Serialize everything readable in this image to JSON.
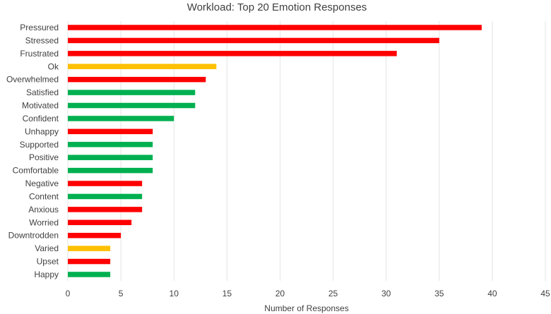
{
  "chart_data": {
    "type": "bar",
    "orientation": "horizontal",
    "title": "Workload: Top 20 Emotion Responses",
    "xlabel": "Number of Responses",
    "ylabel": "",
    "xlim": [
      0,
      45
    ],
    "x_ticks": [
      0,
      5,
      10,
      15,
      20,
      25,
      30,
      35,
      40,
      45
    ],
    "grid": "vertical",
    "legend": "none",
    "colors": {
      "negative": "#ff0000",
      "neutral": "#ffc000",
      "positive": "#00b050"
    },
    "bars": [
      {
        "label": "Pressured",
        "value": 39,
        "sentiment": "negative"
      },
      {
        "label": "Stressed",
        "value": 35,
        "sentiment": "negative"
      },
      {
        "label": "Frustrated",
        "value": 31,
        "sentiment": "negative"
      },
      {
        "label": "Ok",
        "value": 14,
        "sentiment": "neutral"
      },
      {
        "label": "Overwhelmed",
        "value": 13,
        "sentiment": "negative"
      },
      {
        "label": "Satisfied",
        "value": 12,
        "sentiment": "positive"
      },
      {
        "label": "Motivated",
        "value": 12,
        "sentiment": "positive"
      },
      {
        "label": "Confident",
        "value": 10,
        "sentiment": "positive"
      },
      {
        "label": "Unhappy",
        "value": 8,
        "sentiment": "negative"
      },
      {
        "label": "Supported",
        "value": 8,
        "sentiment": "positive"
      },
      {
        "label": "Positive",
        "value": 8,
        "sentiment": "positive"
      },
      {
        "label": "Comfortable",
        "value": 8,
        "sentiment": "positive"
      },
      {
        "label": "Negative",
        "value": 7,
        "sentiment": "negative"
      },
      {
        "label": "Content",
        "value": 7,
        "sentiment": "positive"
      },
      {
        "label": "Anxious",
        "value": 7,
        "sentiment": "negative"
      },
      {
        "label": "Worried",
        "value": 6,
        "sentiment": "negative"
      },
      {
        "label": "Downtrodden",
        "value": 5,
        "sentiment": "negative"
      },
      {
        "label": "Varied",
        "value": 4,
        "sentiment": "neutral"
      },
      {
        "label": "Upset",
        "value": 4,
        "sentiment": "negative"
      },
      {
        "label": "Happy",
        "value": 4,
        "sentiment": "positive"
      }
    ]
  }
}
